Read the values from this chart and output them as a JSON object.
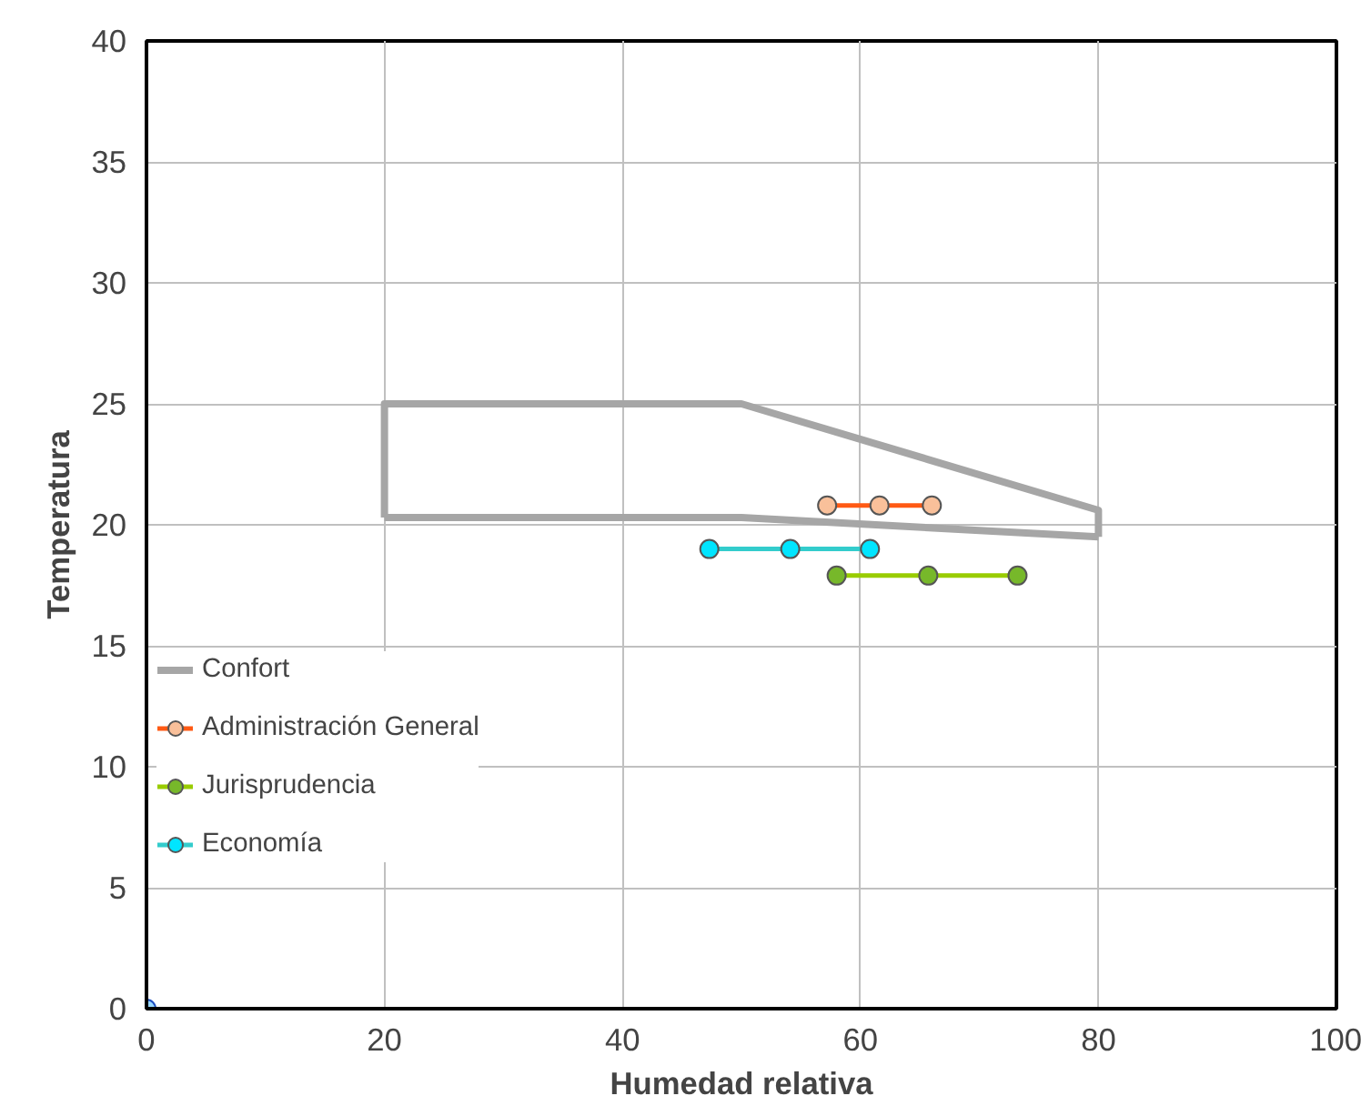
{
  "chart_data": {
    "type": "line",
    "xlabel": "Humedad relativa",
    "ylabel": "Temperatura",
    "xlim": [
      0,
      100
    ],
    "ylim": [
      0,
      40
    ],
    "xticks": [
      0,
      20,
      40,
      60,
      80,
      100
    ],
    "yticks": [
      0,
      5,
      10,
      15,
      20,
      25,
      30,
      35,
      40
    ],
    "grid": true,
    "legend": "left",
    "marker": "circle",
    "series": [
      {
        "name": "Confort",
        "color": "#a6a6a6",
        "marker": "none",
        "x": [
          20,
          20,
          50,
          80,
          80
        ],
        "values": [
          20.3,
          25,
          25,
          20.6,
          19.5
        ]
      },
      {
        "color": "#a6a6a6",
        "marker": "none",
        "x": [
          20,
          50,
          80
        ],
        "values": [
          20.3,
          20.3,
          19.5
        ]
      },
      {
        "name": "Administración General",
        "color": "#ff5a14",
        "colors": [
          "#f9c09a",
          "#f9c09a",
          "#f9c09a"
        ],
        "x": [
          57.2,
          61.6,
          66.0
        ],
        "values": [
          20.8,
          20.8,
          20.8
        ]
      },
      {
        "name": "Jurisprudencia",
        "color": "#99cc00",
        "colors": [
          "#77b82a",
          "#77b82a",
          "#77b82a"
        ],
        "x": [
          58.0,
          65.7,
          73.2
        ],
        "values": [
          17.9,
          17.9,
          17.9
        ]
      },
      {
        "name": "Economía",
        "color": "#33cccc",
        "colors": [
          "#00e5ff",
          "#00e5ff",
          "#00e5ff"
        ],
        "x": [
          47.3,
          54.1,
          60.8
        ],
        "values": [
          19.0,
          19.0,
          19.0
        ]
      },
      {
        "type": "scatter",
        "color": "#1f4fc0",
        "colors": [
          "#9ad8ff"
        ],
        "x": [
          0
        ],
        "values": [
          0
        ]
      }
    ]
  }
}
